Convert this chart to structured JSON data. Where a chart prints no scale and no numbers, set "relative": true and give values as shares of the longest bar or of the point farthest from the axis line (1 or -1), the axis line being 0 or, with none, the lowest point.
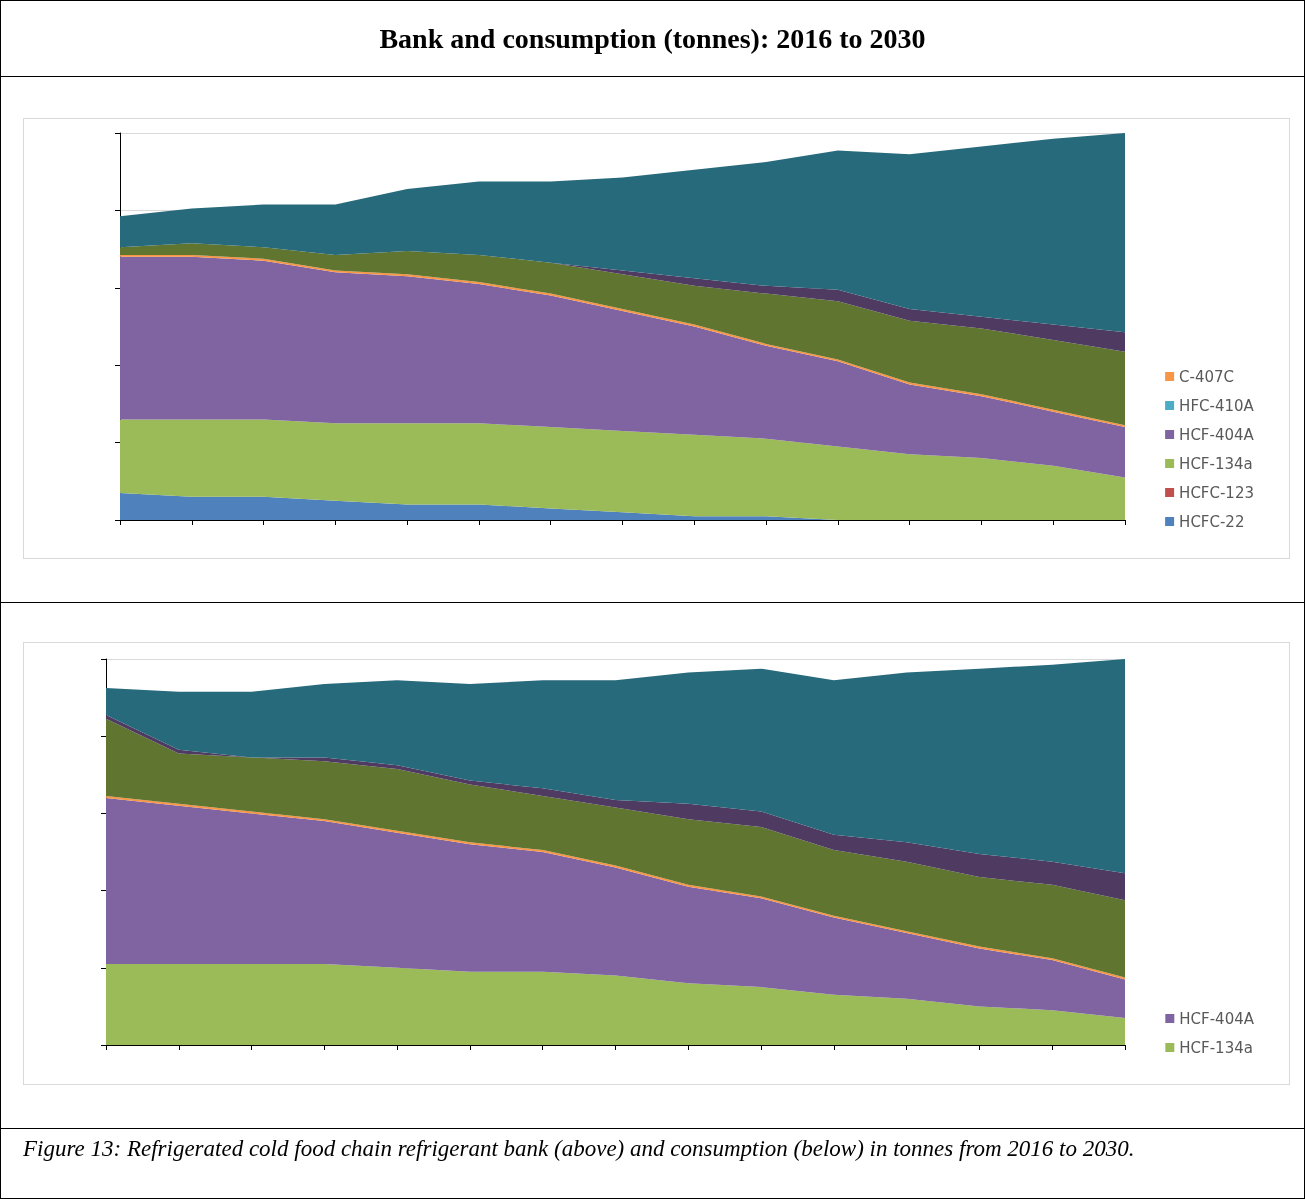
{
  "chart_data": [
    {
      "type": "area",
      "title": "Bank and consumption (tonnes): 2016 to 2030",
      "stacked": true,
      "relative": true,
      "grid": "y",
      "legend": "right",
      "marker": "none",
      "categories": [
        null,
        null,
        null,
        null,
        null,
        null,
        null,
        null,
        null,
        null,
        null,
        null,
        null,
        null,
        null
      ],
      "series": [
        {
          "name": "HCFC-22",
          "color": "#4f81bd",
          "values": [
            0.07,
            0.06,
            0.06,
            0.05,
            0.04,
            0.04,
            0.03,
            0.02,
            0.01,
            0.01,
            0,
            0,
            0,
            0,
            0
          ]
        },
        {
          "name": "HCFC-123",
          "color": "#c0504d",
          "values": [
            null,
            null,
            null,
            null,
            null,
            null,
            null,
            null,
            null,
            null,
            null,
            null,
            null,
            null,
            null
          ]
        },
        {
          "name": "HCF-134a",
          "color": "#9bbb59",
          "values": [
            0.19,
            0.2,
            0.2,
            0.2,
            0.21,
            0.21,
            0.21,
            0.21,
            0.21,
            0.2,
            0.19,
            0.17,
            0.16,
            0.14,
            0.11
          ]
        },
        {
          "name": "HCF-404A",
          "color": "#8064a2",
          "values": [
            0.42,
            0.42,
            0.41,
            0.39,
            0.38,
            0.36,
            0.34,
            0.31,
            0.28,
            0.24,
            0.22,
            0.18,
            0.16,
            0.14,
            0.13
          ]
        },
        {
          "name": "HFC-410A",
          "color": "#4bacc6",
          "values": [
            null,
            null,
            null,
            null,
            null,
            null,
            null,
            null,
            null,
            null,
            null,
            null,
            null,
            null,
            null
          ]
        },
        {
          "name": "C-407C",
          "color": "#f79646",
          "values": [
            0.005,
            0.005,
            0.005,
            0.005,
            0.005,
            0.005,
            0.005,
            0.005,
            0.005,
            0.005,
            0.005,
            0.005,
            0.005,
            0.005,
            0.005
          ]
        },
        {
          "color": "#5f7530",
          "values": [
            0.02,
            0.03,
            0.03,
            0.04,
            0.06,
            0.07,
            0.08,
            0.09,
            0.1,
            0.13,
            0.15,
            0.16,
            0.17,
            0.18,
            0.19
          ]
        },
        {
          "color": "#4f3b62",
          "values": [
            0,
            0,
            0,
            0,
            0,
            0,
            0,
            0.01,
            0.02,
            0.02,
            0.03,
            0.03,
            0.03,
            0.04,
            0.05
          ]
        },
        {
          "color": "#276a7c",
          "values": [
            0.08,
            0.09,
            0.11,
            0.13,
            0.16,
            0.19,
            0.21,
            0.24,
            0.28,
            0.32,
            0.36,
            0.4,
            0.44,
            0.48,
            0.515
          ]
        }
      ]
    },
    {
      "type": "area",
      "stacked": true,
      "relative": true,
      "grid": "y",
      "legend": "right",
      "marker": "none",
      "annotations": [
        "Figure 13: Refrigerated cold food chain refrigerant bank (above) and consumption (below) in tonnes from 2016 to 2030."
      ],
      "categories": [
        null,
        null,
        null,
        null,
        null,
        null,
        null,
        null,
        null,
        null,
        null,
        null,
        null,
        null,
        null
      ],
      "series": [
        {
          "name": "HCF-134a",
          "color": "#9bbb59",
          "values": [
            0.21,
            0.21,
            0.21,
            0.21,
            0.2,
            0.19,
            0.19,
            0.18,
            0.16,
            0.15,
            0.13,
            0.12,
            0.1,
            0.09,
            0.07
          ]
        },
        {
          "name": "HCF-404A",
          "color": "#8064a2",
          "values": [
            0.43,
            0.41,
            0.39,
            0.37,
            0.35,
            0.33,
            0.31,
            0.28,
            0.25,
            0.23,
            0.2,
            0.17,
            0.15,
            0.13,
            0.1
          ]
        },
        {
          "color": "#f79646",
          "values": [
            0.005,
            0.005,
            0.005,
            0.005,
            0.005,
            0.005,
            0.005,
            0.005,
            0.005,
            0.005,
            0.005,
            0.005,
            0.005,
            0.005,
            0.005
          ]
        },
        {
          "color": "#5f7530",
          "values": [
            0.2,
            0.13,
            0.14,
            0.15,
            0.16,
            0.15,
            0.14,
            0.15,
            0.17,
            0.18,
            0.17,
            0.18,
            0.18,
            0.19,
            0.2
          ]
        },
        {
          "color": "#4f3b62",
          "values": [
            0.01,
            0.01,
            0,
            0.01,
            0.01,
            0.01,
            0.02,
            0.02,
            0.04,
            0.04,
            0.04,
            0.05,
            0.06,
            0.06,
            0.07
          ]
        },
        {
          "color": "#276a7c",
          "values": [
            0.07,
            0.15,
            0.17,
            0.19,
            0.22,
            0.25,
            0.28,
            0.31,
            0.34,
            0.37,
            0.4,
            0.44,
            0.48,
            0.51,
            0.555
          ]
        }
      ]
    }
  ]
}
